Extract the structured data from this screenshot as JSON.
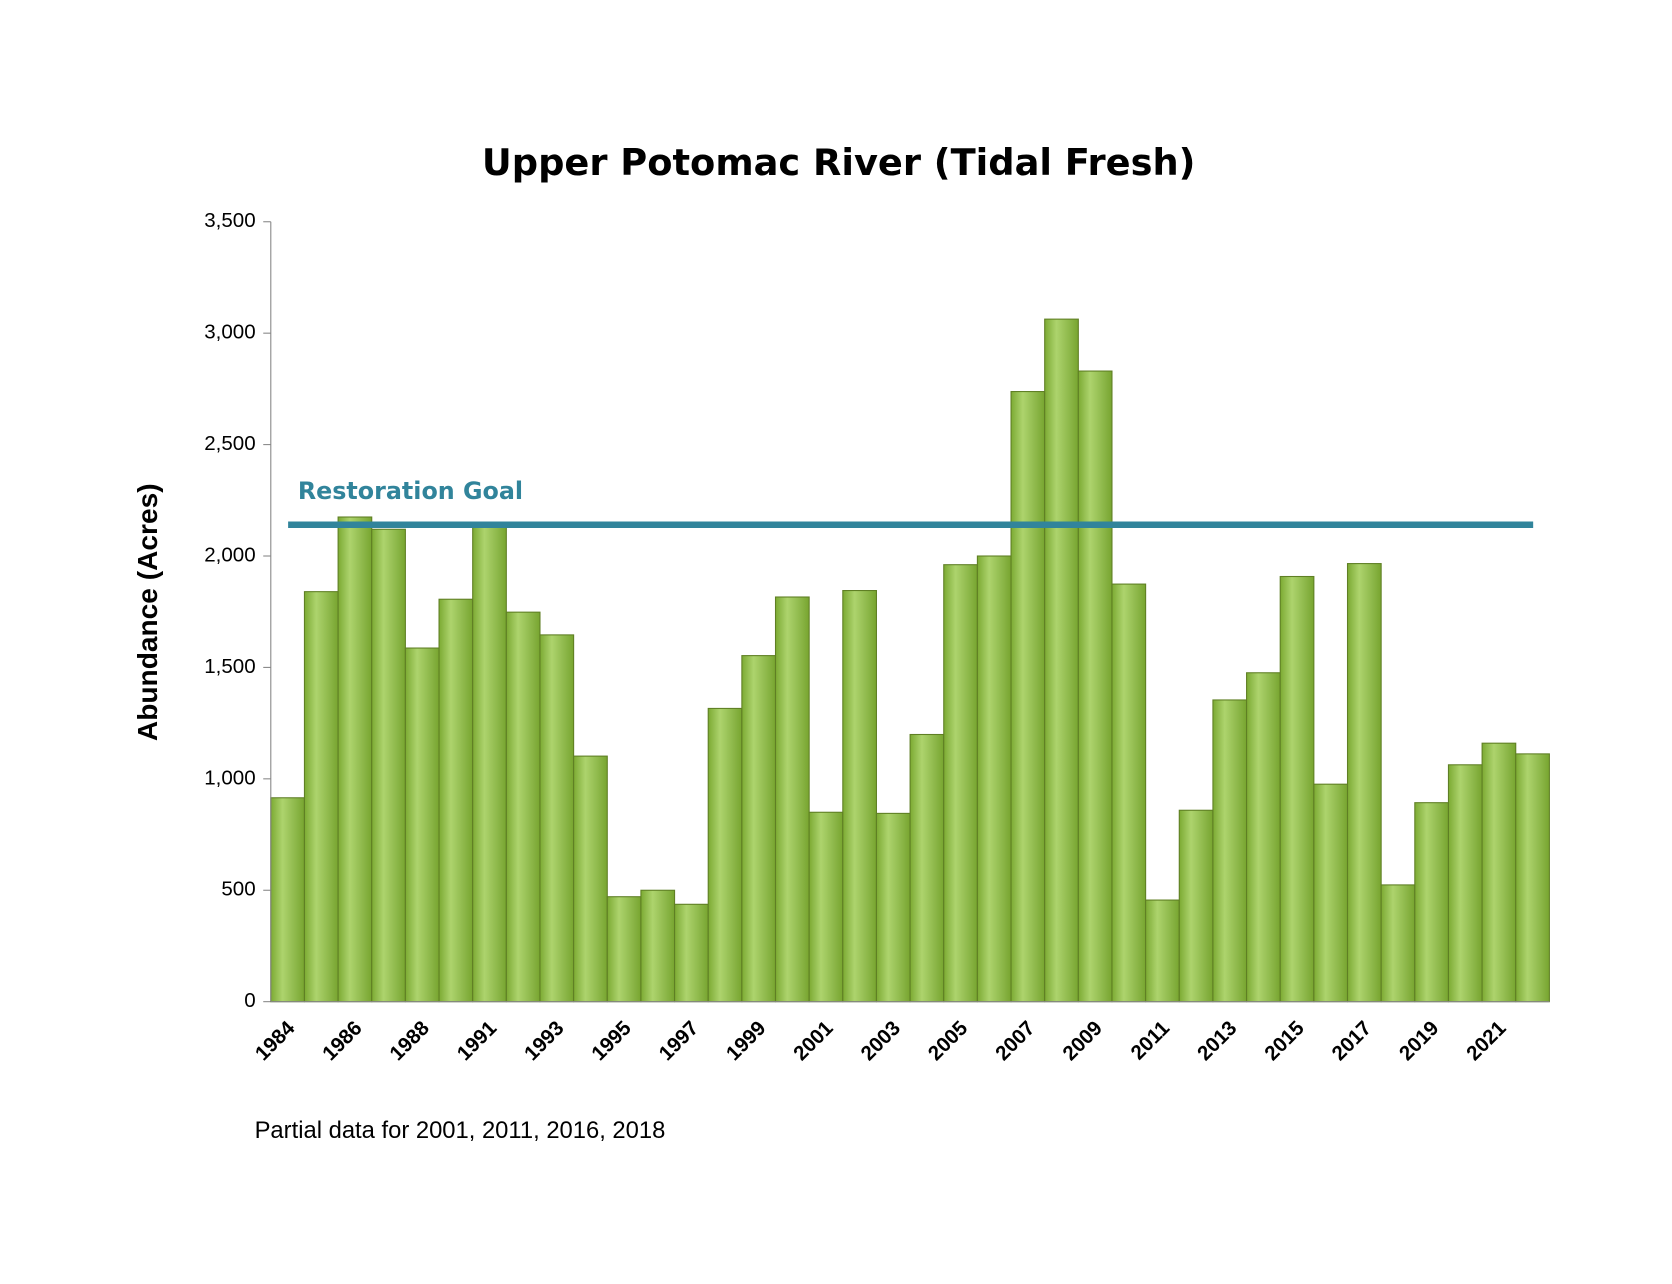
{
  "chart_data": {
    "type": "bar",
    "title": "Upper Potomac River (Tidal Fresh)",
    "y_label": "Abundance (Acres)",
    "note": "Partial data for 2001, 2011, 2016, 2018",
    "categories": [
      "1984",
      null,
      "1986",
      null,
      "1988",
      null,
      "1991",
      null,
      "1993",
      null,
      "1995",
      null,
      "1997",
      null,
      "1999",
      null,
      "2001",
      null,
      "2003",
      null,
      "2005",
      null,
      "2007",
      null,
      "2009",
      null,
      "2011",
      null,
      "2013",
      null,
      "2015",
      null,
      "2017",
      null,
      "2019",
      null,
      "2021",
      null
    ],
    "values": [
      915,
      1840,
      2175,
      2120,
      1587,
      1806,
      2131,
      1748,
      1646,
      1102,
      471,
      500,
      437,
      1316,
      1553,
      1816,
      850,
      1845,
      845,
      1199,
      1961,
      2000,
      2738,
      3063,
      2830,
      1874,
      456,
      859,
      1354,
      1476,
      1908,
      976,
      1966,
      524,
      893,
      1063,
      1160,
      1112
    ],
    "color": "#92c53c",
    "ylim": [
      0,
      3500
    ],
    "yticks": [
      0,
      500,
      {
        "value": 1000,
        "label": "1,000"
      },
      {
        "value": 1500,
        "label": "1,500"
      },
      {
        "value": 2000,
        "label": "2,000"
      },
      {
        "value": 2500,
        "label": "2,500"
      },
      {
        "value": 3000,
        "label": "3,000"
      },
      {
        "value": 3500,
        "label": "3,500"
      }
    ],
    "goal": {
      "label": "Restoration Goal",
      "value": 2140,
      "color": "#31849b"
    }
  }
}
